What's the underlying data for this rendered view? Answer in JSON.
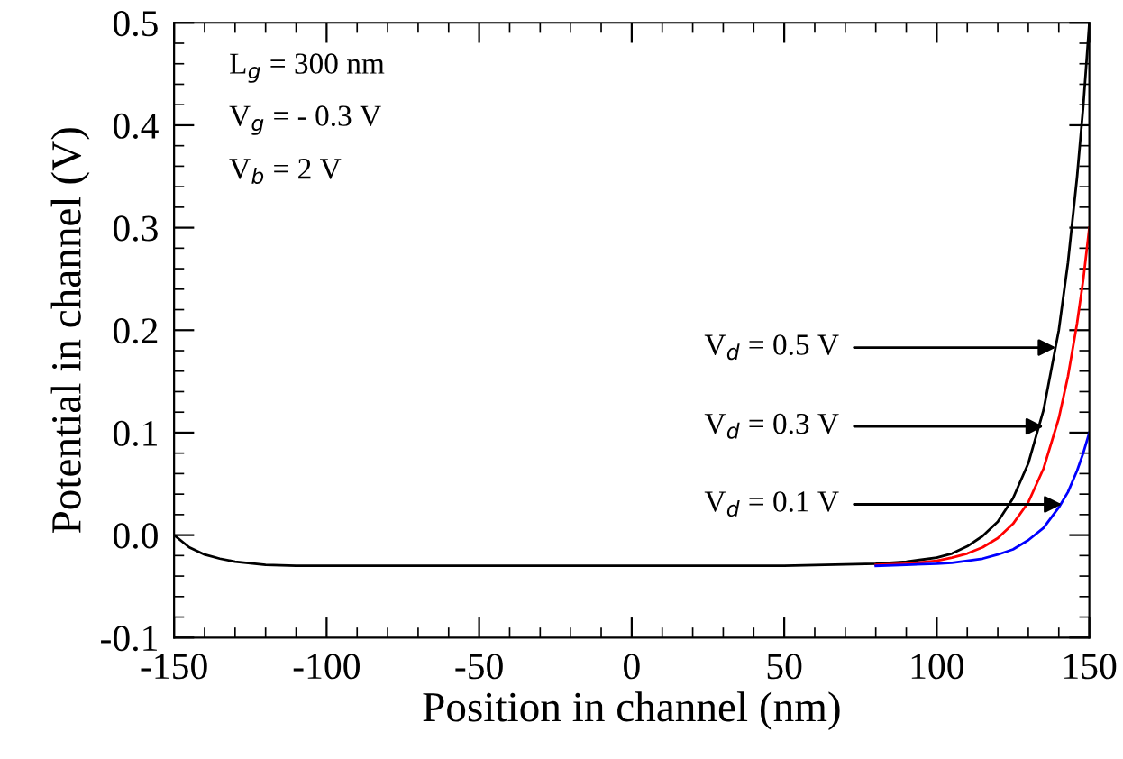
{
  "chart_data": {
    "type": "line",
    "xlabel": "Position in channel (nm)",
    "ylabel": "Potential in channel (V)",
    "x": [
      -150,
      -145,
      -140,
      -135,
      -130,
      -120,
      -110,
      -100,
      -50,
      0,
      50,
      80,
      90,
      100,
      105,
      110,
      115,
      120,
      125,
      130,
      135,
      140,
      143,
      146,
      148,
      150
    ],
    "series": [
      {
        "color": "#000000",
        "values": [
          0,
          -0.012,
          -0.019,
          -0.023,
          -0.026,
          -0.029,
          -0.03,
          -0.03,
          -0.03,
          -0.03,
          -0.03,
          -0.028,
          -0.026,
          -0.022,
          -0.018,
          -0.011,
          -0.001,
          0.013,
          0.036,
          0.07,
          0.122,
          0.2,
          0.266,
          0.35,
          0.418,
          0.5
        ]
      },
      {
        "color": "#ff0000",
        "values": [
          null,
          null,
          null,
          null,
          null,
          null,
          null,
          null,
          null,
          null,
          null,
          -0.029,
          -0.028,
          -0.025,
          -0.022,
          -0.018,
          -0.012,
          -0.003,
          0.011,
          0.032,
          0.065,
          0.114,
          0.155,
          0.207,
          0.249,
          0.3
        ]
      },
      {
        "color": "#0000ff",
        "values": [
          null,
          null,
          null,
          null,
          null,
          null,
          null,
          null,
          null,
          null,
          null,
          -0.03,
          -0.029,
          -0.028,
          -0.027,
          -0.025,
          -0.023,
          -0.019,
          -0.014,
          -0.005,
          0.007,
          0.027,
          0.042,
          0.063,
          0.08,
          0.1
        ]
      }
    ],
    "annotations": [
      "L$_{g}$ = 300 nm",
      "V$_{g}$ = - 0.3 V",
      "V$_{b}$ = 2 V",
      {
        "text": "V$_{d}$ = 0.5 V",
        "x": 139,
        "y": 0.183
      },
      {
        "text": "V$_{d}$ = 0.3 V",
        "x": 135,
        "y": 0.106
      },
      {
        "text": "V$_{d}$ = 0.1 V",
        "x": 141,
        "y": 0.03
      }
    ],
    "xlim": [
      -150,
      150
    ],
    "ylim": [
      -0.1,
      0.5
    ],
    "xticks": [
      -150,
      -100,
      -50,
      0,
      50,
      100,
      150
    ],
    "yticks": [
      {
        "value": -0.1,
        "label": "-0.1"
      },
      {
        "value": 0.0,
        "label": "0.0"
      },
      {
        "value": 0.1,
        "label": "0.1"
      },
      {
        "value": 0.2,
        "label": "0.2"
      },
      {
        "value": 0.3,
        "label": "0.3"
      },
      {
        "value": 0.4,
        "label": "0.4"
      },
      {
        "value": 0.5,
        "label": "0.5"
      }
    ],
    "grid": false,
    "legend": false,
    "marker": "none",
    "line_style": "solid"
  }
}
